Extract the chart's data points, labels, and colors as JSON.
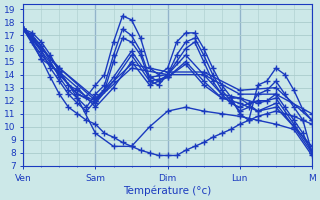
{
  "xlabel": "Température (°c)",
  "xlim": [
    0,
    96
  ],
  "ylim": [
    7,
    19.4
  ],
  "yticks": [
    7,
    8,
    9,
    10,
    11,
    12,
    13,
    14,
    15,
    16,
    17,
    18,
    19
  ],
  "xtick_positions": [
    0,
    24,
    48,
    72,
    96
  ],
  "xtick_labels": [
    "Ven",
    "Sam",
    "Dim",
    "Lun",
    "M"
  ],
  "background_color": "#cce8e8",
  "grid_color": "#aacccc",
  "line_color": "#1a3abf",
  "marker": "+",
  "markersize": 4,
  "linewidth": 1.0,
  "lines": [
    {
      "x": [
        0,
        3,
        6,
        9,
        12,
        15,
        18,
        21,
        24,
        27,
        30,
        33,
        36,
        39,
        42,
        45,
        48,
        51,
        54,
        57,
        60,
        63,
        66,
        69,
        72,
        75,
        78,
        81,
        84,
        87,
        90,
        93,
        96
      ],
      "y": [
        17.5,
        17.2,
        16.5,
        15.5,
        14.2,
        13.2,
        12.8,
        12.3,
        13.2,
        14.0,
        16.5,
        18.5,
        18.2,
        16.8,
        14.5,
        14.0,
        14.5,
        16.5,
        17.2,
        17.2,
        16.0,
        14.5,
        13.2,
        12.3,
        11.0,
        10.5,
        13.2,
        13.5,
        14.5,
        14.0,
        12.8,
        11.3,
        10.5
      ]
    },
    {
      "x": [
        0,
        3,
        6,
        9,
        12,
        15,
        18,
        21,
        24,
        27,
        30,
        33,
        36,
        39,
        42,
        45,
        48,
        51,
        54,
        57,
        60,
        63,
        66,
        69,
        72,
        75,
        78,
        81,
        84,
        87,
        90,
        93,
        96
      ],
      "y": [
        17.5,
        17.0,
        16.2,
        15.0,
        13.8,
        12.8,
        12.2,
        11.5,
        12.5,
        13.2,
        15.5,
        17.5,
        17.0,
        15.8,
        13.8,
        13.5,
        14.0,
        15.5,
        16.5,
        16.8,
        15.5,
        14.0,
        12.8,
        12.0,
        11.2,
        11.5,
        12.5,
        12.8,
        13.5,
        12.5,
        11.5,
        10.5,
        8.0
      ]
    },
    {
      "x": [
        0,
        3,
        6,
        9,
        12,
        15,
        18,
        21,
        24,
        27,
        30,
        33,
        36,
        39,
        42,
        45,
        48,
        51,
        54,
        57,
        60,
        63,
        66,
        69,
        72,
        75,
        78,
        81,
        84,
        87,
        90,
        93,
        96
      ],
      "y": [
        17.5,
        16.8,
        15.8,
        14.5,
        13.5,
        12.5,
        11.8,
        11.2,
        12.0,
        12.8,
        15.0,
        16.8,
        16.5,
        15.5,
        13.5,
        13.2,
        14.0,
        15.0,
        16.0,
        16.5,
        15.0,
        13.5,
        12.5,
        11.8,
        11.5,
        11.8,
        12.0,
        12.0,
        12.5,
        11.5,
        10.5,
        9.5,
        8.0
      ]
    },
    {
      "x": [
        0,
        6,
        12,
        18,
        24,
        30,
        36,
        42,
        48,
        54,
        60,
        66,
        72,
        78,
        84,
        90,
        96
      ],
      "y": [
        17.5,
        15.8,
        14.0,
        12.5,
        12.0,
        13.8,
        15.8,
        13.8,
        14.0,
        15.5,
        14.0,
        12.5,
        12.2,
        11.8,
        12.2,
        10.2,
        8.2
      ]
    },
    {
      "x": [
        0,
        6,
        12,
        18,
        24,
        30,
        36,
        42,
        48,
        54,
        60,
        66,
        72,
        78,
        84,
        90,
        96
      ],
      "y": [
        17.5,
        15.5,
        14.0,
        12.5,
        11.8,
        13.5,
        15.5,
        13.5,
        13.8,
        15.0,
        13.5,
        12.2,
        11.8,
        11.2,
        11.8,
        10.0,
        8.0
      ]
    },
    {
      "x": [
        0,
        6,
        12,
        18,
        24,
        30,
        36,
        42,
        48,
        54,
        60,
        66,
        72,
        78,
        84,
        90,
        96
      ],
      "y": [
        17.5,
        15.2,
        14.2,
        13.0,
        11.5,
        13.0,
        15.0,
        13.2,
        13.8,
        14.8,
        13.2,
        12.2,
        12.2,
        11.2,
        11.5,
        10.0,
        8.5
      ]
    },
    {
      "x": [
        0,
        12,
        24,
        36,
        48,
        60,
        72,
        84,
        96
      ],
      "y": [
        17.5,
        14.5,
        12.0,
        14.5,
        14.0,
        14.0,
        12.5,
        12.5,
        11.0
      ]
    },
    {
      "x": [
        0,
        12,
        24,
        36,
        48,
        60,
        72,
        84,
        96
      ],
      "y": [
        17.5,
        14.5,
        12.2,
        14.8,
        14.2,
        14.2,
        12.8,
        13.0,
        10.5
      ]
    },
    {
      "x": [
        0,
        6,
        12,
        18,
        24,
        30,
        36,
        42,
        48,
        54,
        60,
        66,
        72,
        78,
        84,
        90,
        96
      ],
      "y": [
        17.5,
        16.2,
        14.3,
        12.2,
        9.5,
        8.5,
        8.5,
        10.0,
        11.2,
        11.5,
        11.2,
        11.0,
        10.8,
        10.5,
        10.2,
        9.8,
        7.8
      ]
    },
    {
      "x": [
        0,
        3,
        6,
        9,
        12,
        15,
        18,
        21,
        24,
        27,
        30,
        33,
        36,
        39,
        42,
        45,
        48,
        51,
        54,
        57,
        60,
        63,
        66,
        69,
        72,
        75,
        78,
        81,
        84,
        87,
        90,
        93,
        96
      ],
      "y": [
        17.5,
        16.5,
        15.2,
        13.8,
        12.5,
        11.5,
        11.0,
        10.5,
        10.2,
        9.5,
        9.2,
        8.8,
        8.5,
        8.2,
        8.0,
        7.8,
        7.8,
        7.8,
        8.2,
        8.5,
        8.8,
        9.2,
        9.5,
        9.8,
        10.2,
        10.5,
        10.8,
        11.0,
        11.2,
        11.0,
        10.8,
        10.5,
        10.2
      ]
    }
  ]
}
